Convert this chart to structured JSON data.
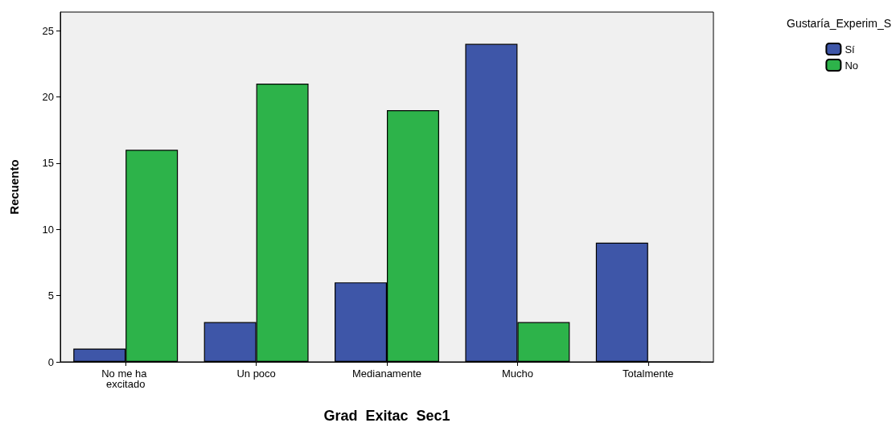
{
  "chart_data": {
    "type": "bar",
    "xlabel": "Grad  Exitac  Sec1",
    "ylabel": "Recuento",
    "legend_title": "Gustaría_Experim_S",
    "categories": [
      "No me ha excitado",
      "Un poco",
      "Medianamente",
      "Mucho",
      "Totalmente"
    ],
    "series": [
      {
        "name": "Sí",
        "color": "#3e56a8",
        "values": [
          1,
          3,
          6,
          24,
          9
        ]
      },
      {
        "name": "No",
        "color": "#2db34a",
        "values": [
          16,
          21,
          19,
          3,
          0
        ]
      }
    ],
    "ylim": [
      0,
      26.4
    ],
    "yticks": [
      0,
      5,
      10,
      15,
      20,
      25
    ],
    "grid": false,
    "legend": "top right"
  }
}
